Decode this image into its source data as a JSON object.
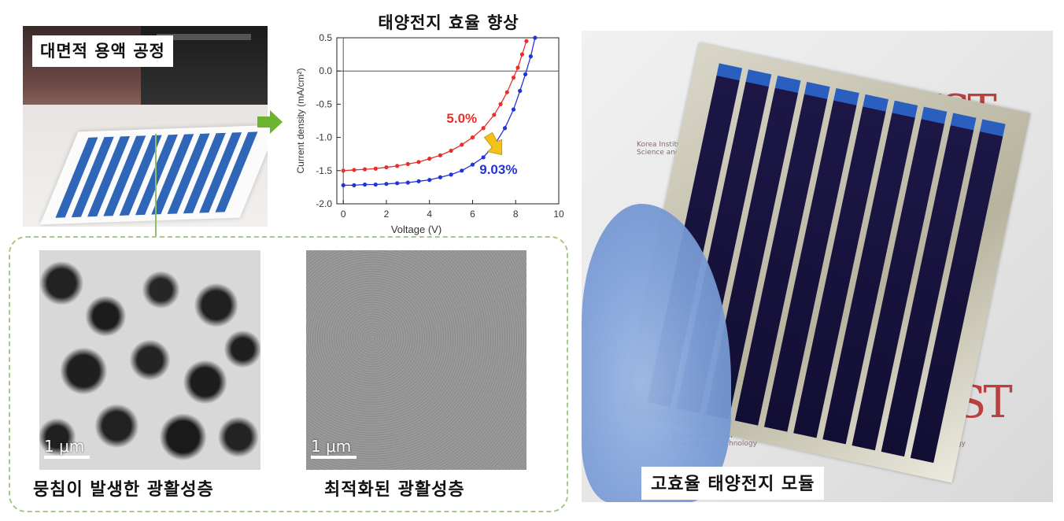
{
  "photo_coating": {
    "title": "대면적 용액 공정"
  },
  "chart_data": {
    "type": "line",
    "title": "태양전지 효율 향상",
    "xlabel": "Voltage (V)",
    "ylabel": "Current density (mA/cm²)",
    "xlim": [
      -0.3,
      10
    ],
    "ylim": [
      -2.0,
      0.5
    ],
    "xticks": [
      0,
      2,
      4,
      6,
      8,
      10
    ],
    "yticks": [
      -2.0,
      -1.5,
      -1.0,
      -0.5,
      0.0,
      0.5
    ],
    "tick_labels_x": [
      "0",
      "2",
      "4",
      "6",
      "8",
      "10"
    ],
    "tick_labels_y": [
      "-2.0",
      "-1.5",
      "-1.0",
      "-0.5",
      "0.0",
      "0.5"
    ],
    "legend": "none",
    "grid": false,
    "series": [
      {
        "label": "5.0%",
        "color": "#e8302a",
        "x": [
          0,
          0.5,
          1.0,
          1.5,
          2.0,
          2.5,
          3.0,
          3.5,
          4.0,
          4.5,
          5.0,
          5.5,
          6.0,
          6.5,
          7.0,
          7.3,
          7.6,
          7.9,
          8.1,
          8.3,
          8.5
        ],
        "y": [
          -1.5,
          -1.49,
          -1.48,
          -1.47,
          -1.45,
          -1.43,
          -1.4,
          -1.37,
          -1.32,
          -1.27,
          -1.2,
          -1.11,
          -1.0,
          -0.86,
          -0.66,
          -0.5,
          -0.32,
          -0.1,
          0.05,
          0.25,
          0.45
        ]
      },
      {
        "label": "9.03%",
        "color": "#2233d8",
        "x": [
          0,
          0.5,
          1.0,
          1.5,
          2.0,
          2.5,
          3.0,
          3.5,
          4.0,
          4.5,
          5.0,
          5.5,
          6.0,
          6.5,
          7.0,
          7.5,
          7.9,
          8.2,
          8.45,
          8.7,
          8.9
        ],
        "y": [
          -1.72,
          -1.72,
          -1.71,
          -1.71,
          -1.7,
          -1.69,
          -1.68,
          -1.66,
          -1.64,
          -1.6,
          -1.56,
          -1.5,
          -1.41,
          -1.3,
          -1.12,
          -0.86,
          -0.58,
          -0.3,
          -0.05,
          0.22,
          0.5
        ]
      }
    ],
    "annotations": [
      {
        "text": "5.0%",
        "x": 5.5,
        "y": -0.78,
        "color": "#e8302a"
      },
      {
        "text": "9.03%",
        "x": 7.2,
        "y": -1.55,
        "color": "#2233d8"
      }
    ]
  },
  "sem": {
    "left_caption": "뭉침이 발생한 광활성층",
    "right_caption": "최적화된 광활성층",
    "scale_label": "1 μm"
  },
  "photo_module": {
    "caption": "고효율 태양전지 모듈",
    "logo_text": "KIST",
    "logo_sub_line1": "Korea Institute of",
    "logo_sub_line2": "Science and Technology"
  },
  "colors": {
    "arrow_green": "#6ab42e",
    "dashed_border": "#a6c98a",
    "annotation_arrow": "#f2c21a"
  }
}
